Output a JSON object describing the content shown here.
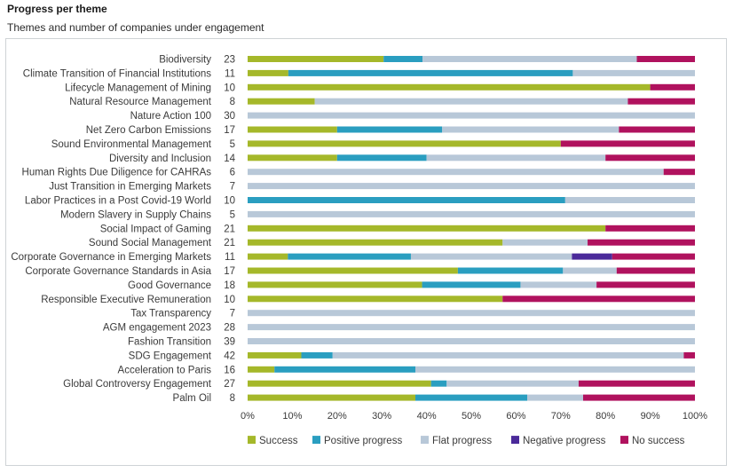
{
  "title": "Progress per theme",
  "subtitle": "Themes and number of companies under engagement",
  "chart_data": {
    "type": "bar",
    "orientation": "horizontal",
    "stacked": true,
    "categories": [
      "Biodiversity",
      "Climate Transition of Financial Institutions",
      "Lifecycle Management of Mining",
      "Natural Resource Management",
      "Nature Action 100",
      "Net Zero Carbon Emissions",
      "Sound Environmental Management",
      "Diversity and Inclusion",
      "Human Rights Due Diligence for CAHRAs",
      "Just Transition in Emerging Markets",
      "Labor Practices in a Post Covid-19 World",
      "Modern Slavery in Supply Chains",
      "Social Impact of Gaming",
      "Sound Social Management",
      "Corporate Governance in Emerging Markets",
      "Corporate Governance Standards in Asia",
      "Good Governance",
      "Responsible Executive Remuneration",
      "Tax Transparency",
      "AGM engagement 2023",
      "Fashion Transition",
      "SDG Engagement",
      "Acceleration to Paris",
      "Global Controversy Engagement",
      "Palm Oil"
    ],
    "counts": [
      "23",
      "11",
      "10",
      "8",
      "30",
      "17",
      "5",
      "14",
      "6",
      "7",
      "10",
      "5",
      "21",
      "21",
      "11",
      "17",
      "18",
      "10",
      "7",
      "28",
      "39",
      "42",
      "16",
      "27",
      "8"
    ],
    "series": [
      {
        "name": "Success",
        "color": "#a5b82a",
        "values": [
          30.4,
          9.1,
          90,
          15,
          0,
          20,
          70,
          20,
          0,
          0,
          0,
          0,
          80,
          57,
          9,
          47,
          39,
          57,
          0,
          0,
          0,
          12,
          6,
          41,
          37.5
        ]
      },
      {
        "name": "Positive progress",
        "color": "#2a9ec0",
        "values": [
          8.7,
          63.6,
          0,
          0,
          0,
          23.5,
          0,
          20,
          0,
          0,
          71,
          0,
          0,
          0,
          27.5,
          23.5,
          22,
          0,
          0,
          0,
          0,
          7,
          31.5,
          3.5,
          25
        ]
      },
      {
        "name": "Flat progress",
        "color": "#b8c8d8",
        "values": [
          47.9,
          27.3,
          0,
          70,
          100,
          39.5,
          0,
          40,
          93,
          100,
          29,
          100,
          0,
          19,
          36,
          12,
          17,
          0,
          100,
          100,
          100,
          78.5,
          62.5,
          29.5,
          12.5
        ]
      },
      {
        "name": "Negative progress",
        "color": "#4b2a9a",
        "values": [
          0,
          0,
          0,
          0,
          0,
          0,
          0,
          0,
          0,
          0,
          0,
          0,
          0,
          0,
          9,
          0,
          0,
          0,
          0,
          0,
          0,
          0,
          0,
          0,
          0
        ]
      },
      {
        "name": "No success",
        "color": "#b0125e",
        "values": [
          13,
          0,
          10,
          15,
          0,
          17,
          30,
          20,
          7,
          0,
          0,
          0,
          20,
          24,
          18.5,
          17.5,
          22,
          43,
          0,
          0,
          0,
          2.5,
          0,
          26,
          25
        ]
      }
    ],
    "x_ticks": [
      "0%",
      "10%",
      "20%",
      "30%",
      "40%",
      "50%",
      "60%",
      "70%",
      "80%",
      "90%",
      "100%"
    ],
    "xlim": [
      0,
      100
    ],
    "grid": false,
    "legend_position": "bottom"
  }
}
